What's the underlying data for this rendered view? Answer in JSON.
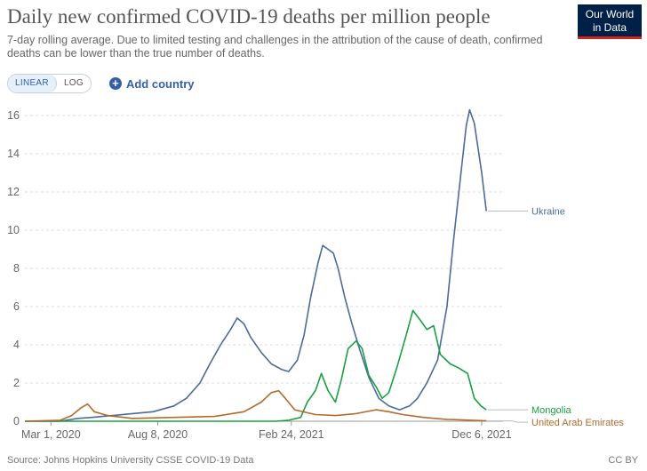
{
  "header": {
    "title": "Daily new confirmed COVID-19 deaths per million people",
    "subtitle": "7-day rolling average. Due to limited testing and challenges in the attribution of the cause of death, confirmed deaths can be lower than the true number of deaths.",
    "logo_line1": "Our World",
    "logo_line2": "in Data"
  },
  "controls": {
    "linear_label": "LINEAR",
    "log_label": "LOG",
    "add_country_label": "Add country"
  },
  "footer": {
    "source": "Source: Johns Hopkins University CSSE COVID-19 Data",
    "license": "CC BY"
  },
  "colors": {
    "ukraine": "#4c6a9c",
    "mongolia": "#18a042",
    "uae": "#b56a2a",
    "grid": "#dddddd",
    "accent": "#3360a9"
  },
  "chart_data": {
    "type": "line",
    "title": "Daily new confirmed COVID-19 deaths per million people",
    "ylim": [
      0,
      16
    ],
    "yticks": [
      0,
      2,
      4,
      6,
      8,
      10,
      12,
      14,
      16
    ],
    "xlim": [
      "2020-01-22",
      "2022-01-07"
    ],
    "xticks": [
      {
        "date": "2020-03-01",
        "label": "Mar 1, 2020"
      },
      {
        "date": "2020-08-08",
        "label": "Aug 8, 2020"
      },
      {
        "date": "2021-02-24",
        "label": "Feb 24, 2021"
      },
      {
        "date": "2021-12-06",
        "label": "Dec 6, 2021"
      }
    ],
    "grid": true,
    "series": [
      {
        "name": "Ukraine",
        "color": "#4c6a9c",
        "points": [
          [
            "2020-01-22",
            0
          ],
          [
            "2020-03-15",
            0
          ],
          [
            "2020-04-10",
            0.15
          ],
          [
            "2020-05-01",
            0.2
          ],
          [
            "2020-06-01",
            0.3
          ],
          [
            "2020-07-01",
            0.4
          ],
          [
            "2020-08-01",
            0.5
          ],
          [
            "2020-09-01",
            0.8
          ],
          [
            "2020-09-20",
            1.2
          ],
          [
            "2020-10-10",
            2.0
          ],
          [
            "2020-10-25",
            3.0
          ],
          [
            "2020-11-10",
            4.0
          ],
          [
            "2020-11-25",
            4.8
          ],
          [
            "2020-12-05",
            5.4
          ],
          [
            "2020-12-15",
            5.1
          ],
          [
            "2020-12-25",
            4.4
          ],
          [
            "2021-01-10",
            3.6
          ],
          [
            "2021-01-25",
            3.0
          ],
          [
            "2021-02-10",
            2.7
          ],
          [
            "2021-02-20",
            2.6
          ],
          [
            "2021-03-05",
            3.2
          ],
          [
            "2021-03-15",
            4.5
          ],
          [
            "2021-03-25",
            6.5
          ],
          [
            "2021-04-05",
            8.3
          ],
          [
            "2021-04-12",
            9.2
          ],
          [
            "2021-04-20",
            9.0
          ],
          [
            "2021-04-28",
            8.8
          ],
          [
            "2021-05-05",
            8.0
          ],
          [
            "2021-05-15",
            6.5
          ],
          [
            "2021-05-25",
            5.2
          ],
          [
            "2021-06-05",
            3.9
          ],
          [
            "2021-06-20",
            2.3
          ],
          [
            "2021-07-05",
            1.2
          ],
          [
            "2021-07-20",
            0.8
          ],
          [
            "2021-08-05",
            0.6
          ],
          [
            "2021-08-20",
            0.8
          ],
          [
            "2021-09-01",
            1.2
          ],
          [
            "2021-09-15",
            2.0
          ],
          [
            "2021-10-01",
            3.2
          ],
          [
            "2021-10-15",
            6.0
          ],
          [
            "2021-10-25",
            9.5
          ],
          [
            "2021-11-05",
            13.0
          ],
          [
            "2021-11-13",
            15.5
          ],
          [
            "2021-11-18",
            16.3
          ],
          [
            "2021-11-25",
            15.6
          ],
          [
            "2021-12-01",
            14.2
          ],
          [
            "2021-12-06",
            13.0
          ],
          [
            "2021-12-13",
            11.0
          ]
        ]
      },
      {
        "name": "Mongolia",
        "color": "#18a042",
        "points": [
          [
            "2020-01-22",
            0
          ],
          [
            "2021-02-01",
            0
          ],
          [
            "2021-02-20",
            0.05
          ],
          [
            "2021-03-10",
            0.2
          ],
          [
            "2021-03-20",
            1.0
          ],
          [
            "2021-04-01",
            1.6
          ],
          [
            "2021-04-10",
            2.5
          ],
          [
            "2021-04-20",
            1.6
          ],
          [
            "2021-05-01",
            1.0
          ],
          [
            "2021-05-10",
            2.2
          ],
          [
            "2021-05-20",
            3.8
          ],
          [
            "2021-06-01",
            4.2
          ],
          [
            "2021-06-10",
            3.8
          ],
          [
            "2021-06-20",
            2.4
          ],
          [
            "2021-07-01",
            1.8
          ],
          [
            "2021-07-10",
            1.2
          ],
          [
            "2021-07-20",
            1.5
          ],
          [
            "2021-08-01",
            2.8
          ],
          [
            "2021-08-15",
            4.5
          ],
          [
            "2021-08-25",
            5.8
          ],
          [
            "2021-09-05",
            5.3
          ],
          [
            "2021-09-15",
            4.8
          ],
          [
            "2021-09-25",
            5.0
          ],
          [
            "2021-10-05",
            3.5
          ],
          [
            "2021-10-20",
            3.0
          ],
          [
            "2021-11-01",
            2.8
          ],
          [
            "2021-11-15",
            2.5
          ],
          [
            "2021-11-25",
            1.2
          ],
          [
            "2021-12-05",
            0.8
          ],
          [
            "2021-12-13",
            0.6
          ]
        ]
      },
      {
        "name": "United Arab Emirates",
        "color": "#b56a2a",
        "points": [
          [
            "2020-01-22",
            0
          ],
          [
            "2020-03-15",
            0.05
          ],
          [
            "2020-04-01",
            0.3
          ],
          [
            "2020-04-15",
            0.7
          ],
          [
            "2020-04-25",
            0.9
          ],
          [
            "2020-05-05",
            0.5
          ],
          [
            "2020-05-25",
            0.3
          ],
          [
            "2020-07-01",
            0.15
          ],
          [
            "2020-09-01",
            0.2
          ],
          [
            "2020-11-01",
            0.25
          ],
          [
            "2020-12-15",
            0.5
          ],
          [
            "2021-01-10",
            1.0
          ],
          [
            "2021-01-25",
            1.5
          ],
          [
            "2021-02-05",
            1.6
          ],
          [
            "2021-02-15",
            1.2
          ],
          [
            "2021-03-01",
            0.6
          ],
          [
            "2021-04-01",
            0.35
          ],
          [
            "2021-05-01",
            0.3
          ],
          [
            "2021-06-01",
            0.4
          ],
          [
            "2021-07-01",
            0.6
          ],
          [
            "2021-07-20",
            0.5
          ],
          [
            "2021-08-10",
            0.35
          ],
          [
            "2021-09-10",
            0.2
          ],
          [
            "2021-10-15",
            0.1
          ],
          [
            "2021-12-13",
            0.02
          ]
        ]
      }
    ]
  }
}
